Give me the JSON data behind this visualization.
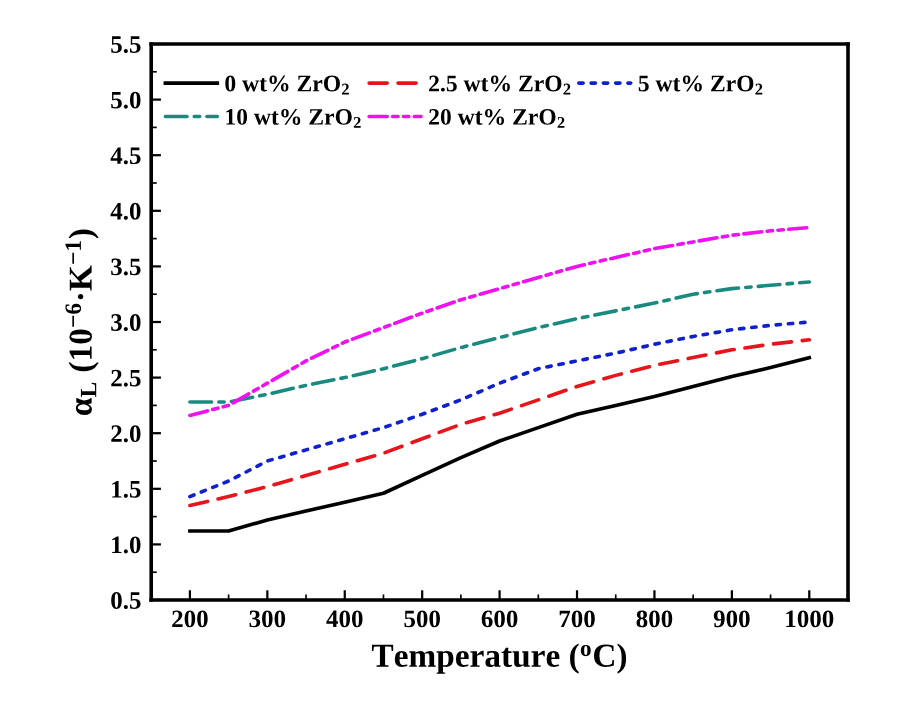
{
  "chart_data": {
    "type": "line",
    "xlabel": "Temperature ($^{o}$C)",
    "ylabel": "α$_{L}$ (10$^{−6}$·K$^{−1}$)",
    "x": [
      200,
      250,
      300,
      350,
      400,
      450,
      500,
      550,
      600,
      650,
      700,
      750,
      800,
      850,
      900,
      950,
      1000
    ],
    "series": [
      {
        "name": "0 wt% ZrO$_{2}$",
        "color": "#000000",
        "line_style": "solid",
        "values": [
          1.12,
          1.12,
          1.22,
          1.3,
          1.38,
          1.46,
          1.62,
          1.78,
          1.93,
          2.05,
          2.17,
          2.25,
          2.33,
          2.42,
          2.51,
          2.59,
          2.68
        ]
      },
      {
        "name": "2.5 wt% ZrO$_{2}$",
        "color": "#e8141b",
        "line_style": "dashed",
        "values": [
          1.35,
          1.43,
          1.52,
          1.62,
          1.72,
          1.82,
          1.95,
          2.08,
          2.18,
          2.3,
          2.42,
          2.52,
          2.61,
          2.68,
          2.75,
          2.8,
          2.84
        ]
      },
      {
        "name": "5 wt% ZrO$_{2}$",
        "color": "#1020d0",
        "line_style": "dotted",
        "values": [
          1.43,
          1.57,
          1.75,
          1.85,
          1.95,
          2.05,
          2.17,
          2.3,
          2.45,
          2.58,
          2.65,
          2.72,
          2.8,
          2.87,
          2.93,
          2.97,
          3.0
        ]
      },
      {
        "name": "10 wt% ZrO$_{2}$",
        "color": "#1a8a80",
        "line_style": "dashdot",
        "values": [
          2.28,
          2.28,
          2.35,
          2.43,
          2.5,
          2.58,
          2.67,
          2.77,
          2.86,
          2.95,
          3.03,
          3.1,
          3.17,
          3.25,
          3.3,
          3.33,
          3.36
        ]
      },
      {
        "name": "20 wt% ZrO$_{2}$",
        "color": "#f010f0",
        "line_style": "dashdotdot",
        "values": [
          2.16,
          2.25,
          2.45,
          2.65,
          2.82,
          2.95,
          3.08,
          3.2,
          3.3,
          3.4,
          3.5,
          3.58,
          3.66,
          3.72,
          3.78,
          3.82,
          3.85
        ]
      }
    ],
    "xlim": [
      150,
      1050
    ],
    "xticks": [
      200,
      300,
      400,
      500,
      600,
      700,
      800,
      900,
      1000
    ],
    "ylim": [
      0.5,
      5.5
    ],
    "yticks": [
      0.5,
      {
        "value": 1,
        "label": "1.0"
      },
      1.5,
      {
        "value": 2,
        "label": "2.0"
      },
      2.5,
      {
        "value": 3,
        "label": "3.0"
      },
      3.5,
      {
        "value": 4,
        "label": "4.0"
      },
      4.5,
      {
        "value": 5,
        "label": "5.0"
      },
      5.5
    ],
    "legend": "top left",
    "grid": false,
    "marker": "none"
  }
}
